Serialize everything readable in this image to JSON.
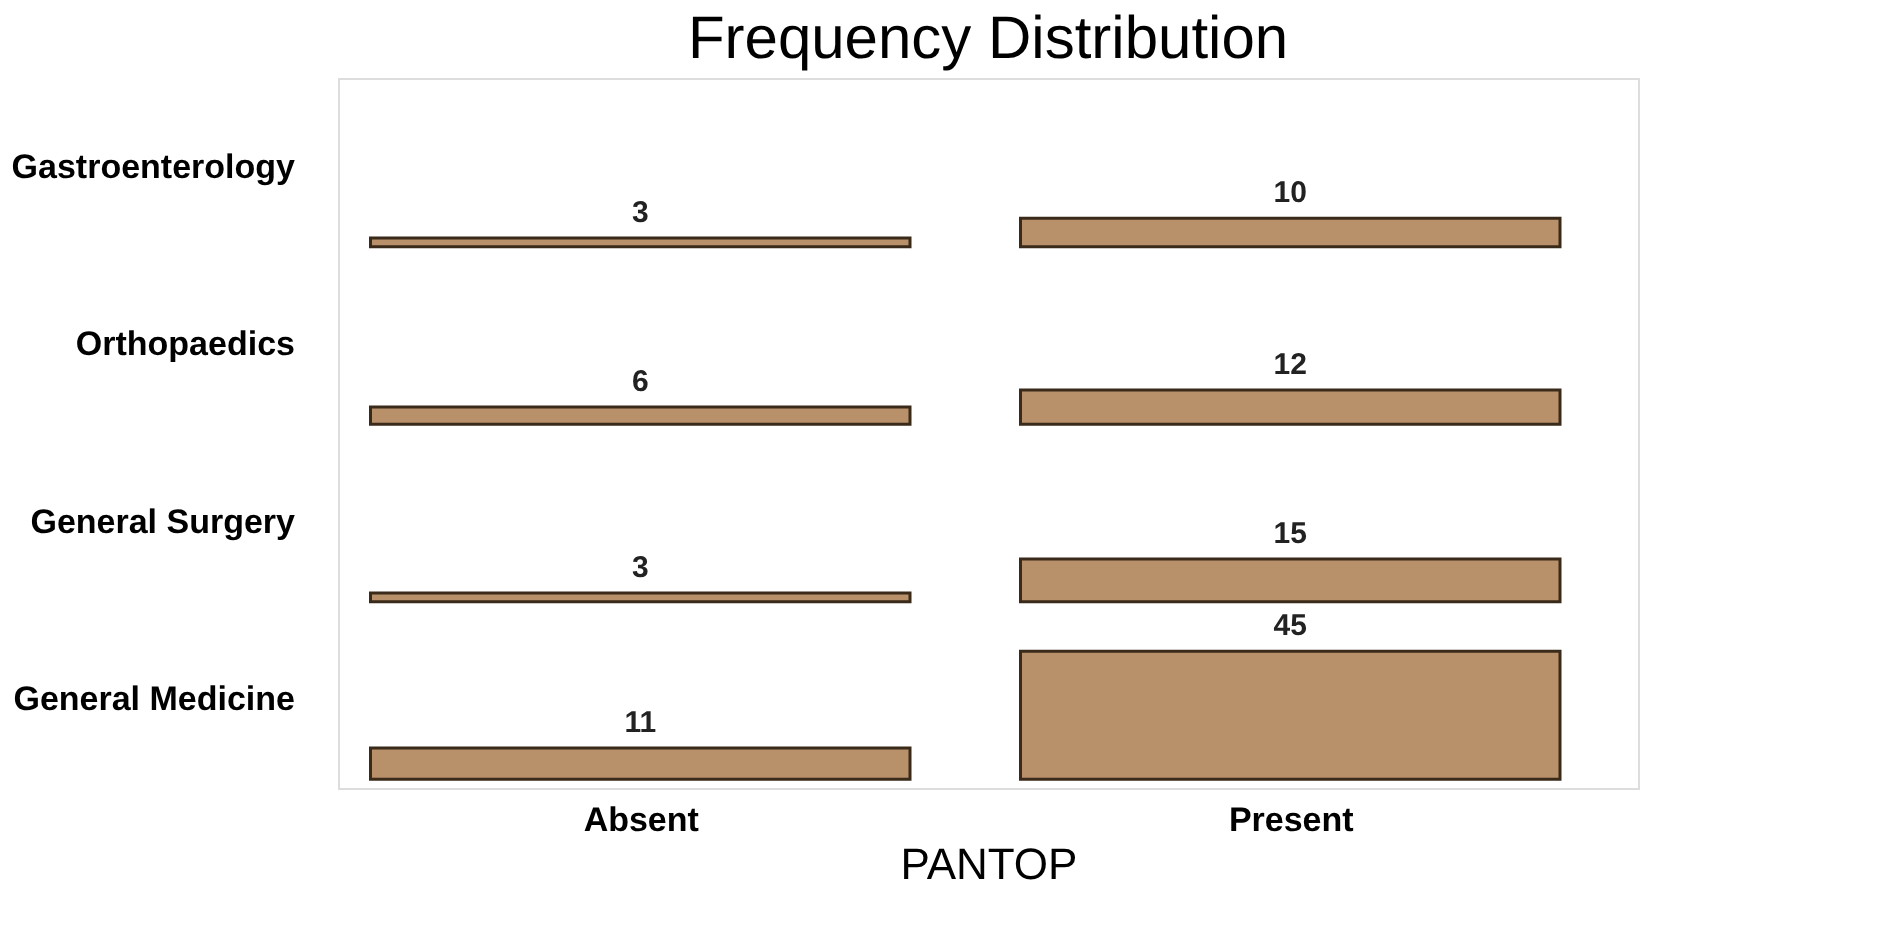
{
  "chart_data": {
    "type": "heatmap",
    "title": "Frequency Distribution",
    "xlabel": "PANTOP",
    "categories": [
      "Absent",
      "Present"
    ],
    "y_categories": [
      "Gastroenterology",
      "Orthopaedics",
      "General Surgery",
      "General Medicine"
    ],
    "cells": [
      [
        3,
        10
      ],
      [
        6,
        12
      ],
      [
        3,
        15
      ],
      [
        11,
        45
      ]
    ],
    "color": "#b8916a",
    "data_labels": true
  }
}
